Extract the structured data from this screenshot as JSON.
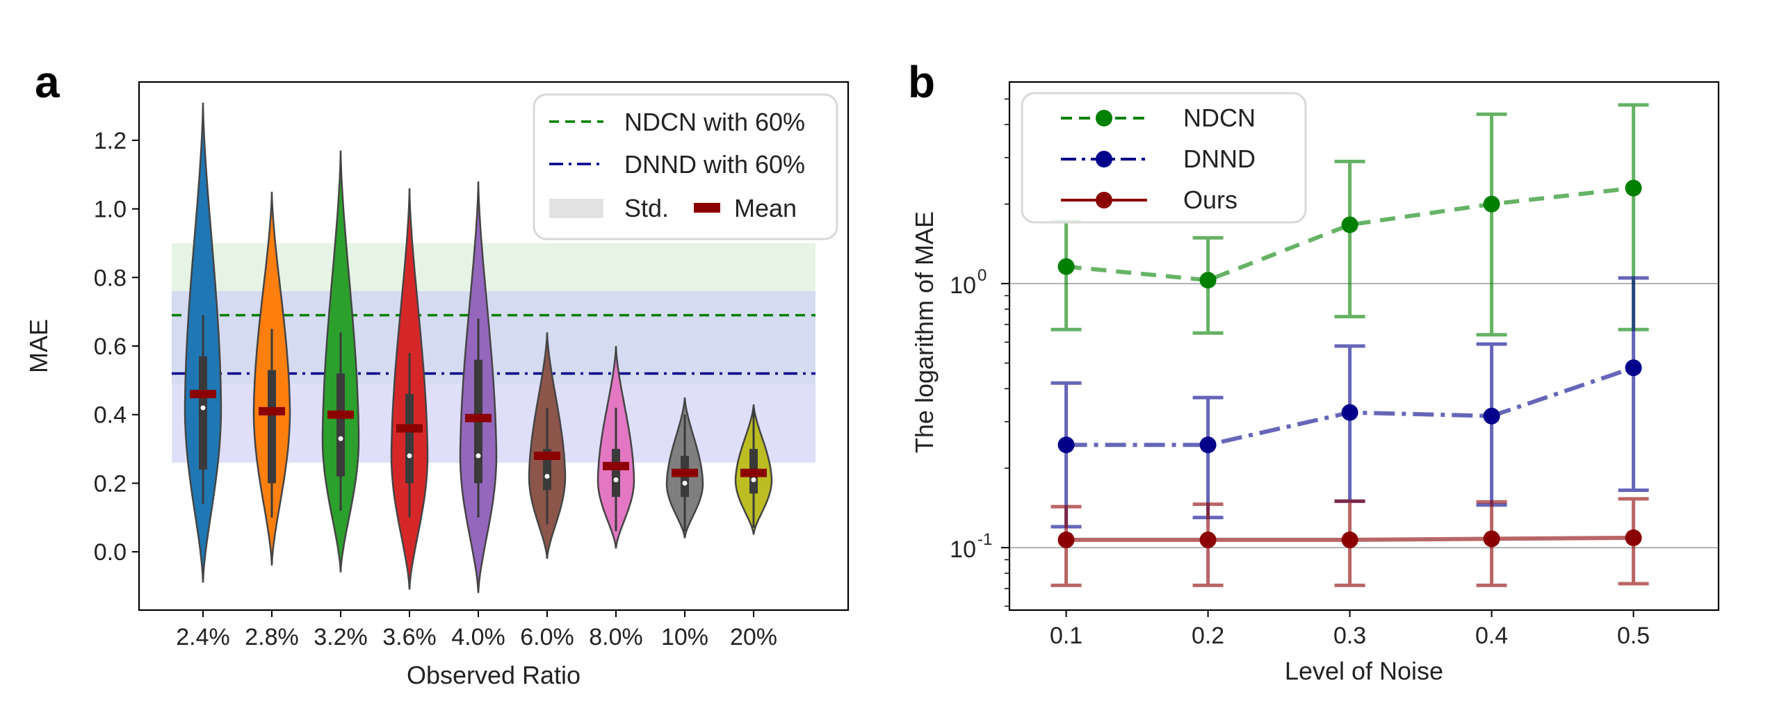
{
  "chart_data": [
    {
      "panel": "a",
      "type": "violin",
      "xlabel": "Observed Ratio",
      "ylabel": "MAE",
      "ylim": [
        -0.17,
        1.37
      ],
      "yticks": [
        "0.0",
        "0.2",
        "0.4",
        "0.6",
        "0.8",
        "1.0",
        "1.2"
      ],
      "ytick_values": [
        0.0,
        0.2,
        0.4,
        0.6,
        0.8,
        1.0,
        1.2
      ],
      "categories": [
        "2.4%",
        "2.8%",
        "3.2%",
        "3.6%",
        "4.0%",
        "6.0%",
        "8.0%",
        "10%",
        "20%"
      ],
      "colors": [
        "#1f77b4",
        "#ff7f0e",
        "#2ca02c",
        "#d62728",
        "#9467bd",
        "#8c564b",
        "#e377c2",
        "#7f7f7f",
        "#bcbd22"
      ],
      "violins": [
        {
          "min": -0.09,
          "max": 1.31,
          "q1": 0.24,
          "median": 0.42,
          "q3": 0.57,
          "mean": 0.46
        },
        {
          "min": -0.04,
          "max": 1.05,
          "q1": 0.2,
          "median": 0.41,
          "q3": 0.53,
          "mean": 0.41
        },
        {
          "min": -0.06,
          "max": 1.17,
          "q1": 0.22,
          "median": 0.33,
          "q3": 0.52,
          "mean": 0.4
        },
        {
          "min": -0.11,
          "max": 1.06,
          "q1": 0.2,
          "median": 0.28,
          "q3": 0.46,
          "mean": 0.36
        },
        {
          "min": -0.12,
          "max": 1.08,
          "q1": 0.2,
          "median": 0.28,
          "q3": 0.56,
          "mean": 0.39
        },
        {
          "min": -0.02,
          "max": 0.64,
          "q1": 0.18,
          "median": 0.22,
          "q3": 0.3,
          "mean": 0.28
        },
        {
          "min": 0.01,
          "max": 0.6,
          "q1": 0.16,
          "median": 0.21,
          "q3": 0.3,
          "mean": 0.25
        },
        {
          "min": 0.04,
          "max": 0.45,
          "q1": 0.16,
          "median": 0.2,
          "q3": 0.28,
          "mean": 0.23
        },
        {
          "min": 0.05,
          "max": 0.43,
          "q1": 0.17,
          "median": 0.21,
          "q3": 0.3,
          "mean": 0.23
        }
      ],
      "reference_lines": [
        {
          "name": "NDCN with 60%",
          "mean": 0.69,
          "std_band": [
            0.49,
            0.9
          ],
          "color": "#008000",
          "band_color": "#d5ecd3"
        },
        {
          "name": "DNND with 60%",
          "mean": 0.52,
          "std_band": [
            0.26,
            0.76
          ],
          "color": "#00008b",
          "band_color": "#c9c9f7"
        }
      ],
      "legend": {
        "position": "top-right",
        "entries": [
          "NDCN with 60%",
          "DNND with 60%",
          "Std.",
          "Mean"
        ]
      }
    },
    {
      "panel": "b",
      "type": "line",
      "yscale": "log",
      "xlabel": "Level of Noise",
      "ylabel": "The logarithm of  MAE",
      "xlim": [
        0.06,
        0.56
      ],
      "ylim": [
        0.058,
        5.8
      ],
      "x": [
        0.1,
        0.2,
        0.3,
        0.4,
        0.5
      ],
      "xticks": [
        "0.1",
        "0.2",
        "0.3",
        "0.4",
        "0.5"
      ],
      "ytick_values": [
        0.1,
        1.0
      ],
      "ytick_bases": [
        "10",
        "10"
      ],
      "ytick_exponents": [
        "-1",
        "0"
      ],
      "series": [
        {
          "name": "NDCN",
          "values": [
            1.16,
            1.03,
            1.67,
            2.0,
            2.3
          ],
          "err_low": [
            0.67,
            0.65,
            0.75,
            0.64,
            0.67
          ],
          "err_high": [
            1.72,
            1.49,
            2.9,
            4.38,
            4.75
          ],
          "color": "#008000",
          "style": "dashed"
        },
        {
          "name": "DNND",
          "values": [
            0.245,
            0.245,
            0.325,
            0.315,
            0.48
          ],
          "err_low": [
            0.12,
            0.13,
            0.15,
            0.145,
            0.165
          ],
          "err_high": [
            0.42,
            0.37,
            0.58,
            0.59,
            1.05
          ],
          "color": "#00008b",
          "style": "dashdot"
        },
        {
          "name": "Ours",
          "values": [
            0.107,
            0.107,
            0.107,
            0.108,
            0.109
          ],
          "err_low": [
            0.072,
            0.072,
            0.072,
            0.072,
            0.073
          ],
          "err_high": [
            0.143,
            0.146,
            0.15,
            0.149,
            0.153
          ],
          "color": "#8b0000",
          "style": "solid"
        }
      ],
      "legend": {
        "position": "top-left",
        "entries": [
          "NDCN",
          "DNND",
          "Ours"
        ]
      }
    }
  ],
  "panel_labels": [
    "a",
    "b"
  ]
}
